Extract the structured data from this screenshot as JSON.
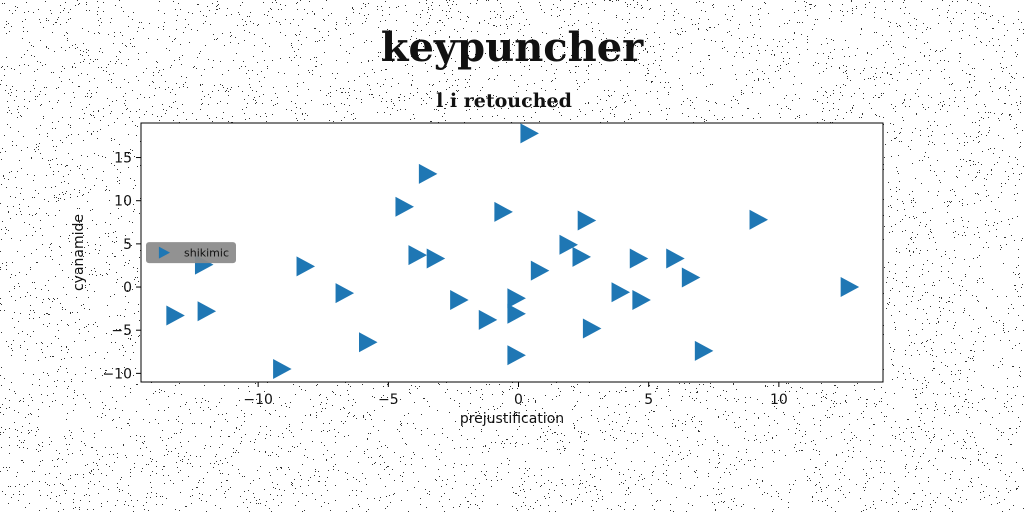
{
  "page": {
    "title": "keypuncher",
    "subtitle": "l i retouched"
  },
  "chart_data": {
    "type": "scatter",
    "title": "l i retouched",
    "xlabel": "prejustification",
    "ylabel": "cyanamide",
    "xlim": [
      -14.5,
      14.0
    ],
    "ylim": [
      -11.0,
      19.0
    ],
    "xticks": [
      -10,
      -5,
      0,
      5,
      10
    ],
    "yticks": [
      -10,
      -5,
      0,
      5,
      10,
      15
    ],
    "xtick_labels": [
      "−10",
      "−5",
      "0",
      "5",
      "10"
    ],
    "ytick_labels": [
      "−10",
      "−5",
      "0",
      "5",
      "10",
      "15"
    ],
    "grid": false,
    "legend_position": "center-left",
    "series": [
      {
        "name": "shikimic",
        "color": "#1f77b4",
        "marker": "triangle-right",
        "x": [
          0.4,
          -3.5,
          -4.4,
          -0.6,
          2.6,
          9.2,
          1.9,
          2.4,
          -3.9,
          -3.2,
          -12.1,
          -8.2,
          -6.7,
          0.8,
          4.6,
          6.0,
          6.6,
          12.7,
          3.9,
          -2.3,
          4.7,
          -0.1,
          -13.2,
          -12.0,
          -1.2,
          -0.1,
          2.8,
          -5.8,
          7.1,
          -0.1,
          -9.1
        ],
        "y": [
          17.8,
          13.1,
          9.3,
          8.7,
          7.7,
          7.8,
          4.9,
          3.5,
          3.7,
          3.3,
          2.6,
          2.4,
          -0.7,
          1.9,
          3.3,
          3.3,
          1.1,
          0.0,
          -0.6,
          -1.5,
          -1.5,
          -1.3,
          -3.3,
          -2.8,
          -3.8,
          -3.1,
          -4.8,
          -6.4,
          -7.4,
          -7.9,
          -9.5
        ]
      }
    ]
  }
}
